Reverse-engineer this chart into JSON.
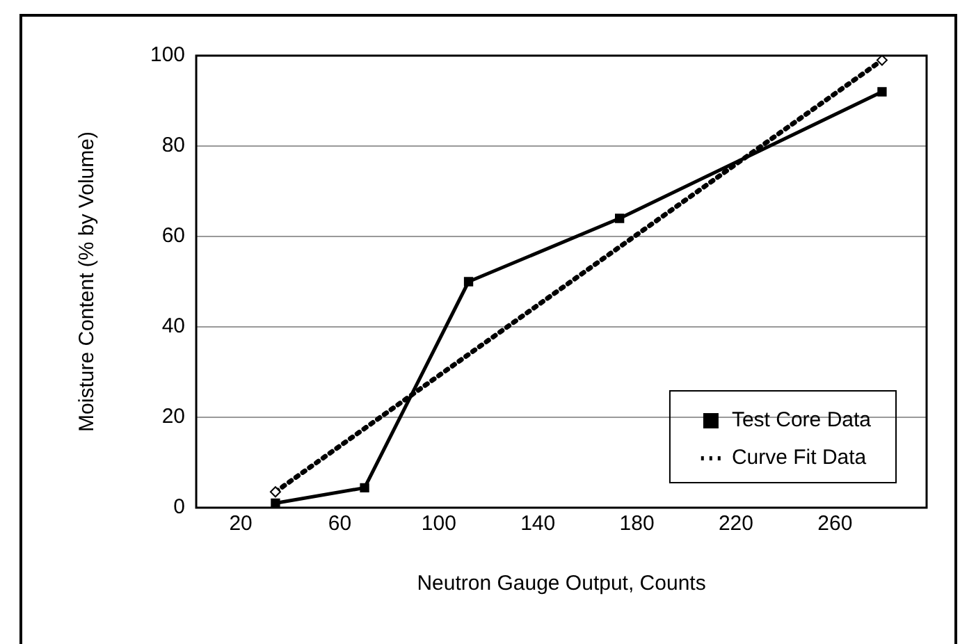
{
  "chart_data": {
    "type": "line",
    "xlabel": "Neutron Gauge Output, Counts",
    "ylabel": "Moisture Content (% by Volume)",
    "xlim": [
      2,
      297
    ],
    "xticks": [
      20,
      60,
      100,
      140,
      180,
      220,
      260
    ],
    "ylim": [
      0,
      100
    ],
    "yticks": [
      0,
      20,
      40,
      60,
      80,
      100
    ],
    "grid": "y",
    "legend": "bottom right",
    "series": [
      {
        "name": "Test Core Data",
        "color": "#000000",
        "x": [
          34,
          70,
          112,
          173,
          279
        ],
        "values": [
          1,
          4.4,
          50,
          64,
          92
        ],
        "marker": "square",
        "line_style": "solid"
      },
      {
        "name": "Curve Fit Data",
        "type": "line",
        "color": "#000000",
        "x": [
          34,
          279
        ],
        "values": [
          3.5,
          99
        ],
        "marker": "diamond",
        "line_style": "dotted"
      }
    ]
  }
}
